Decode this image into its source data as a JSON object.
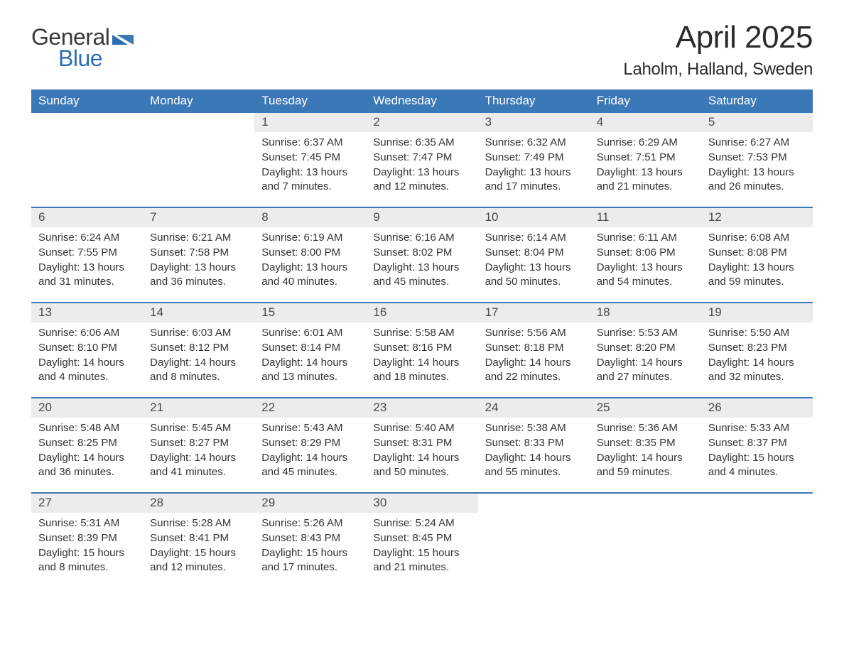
{
  "logo": {
    "top": "General",
    "bottom": "Blue",
    "top_color": "#3a3a3a",
    "bottom_color": "#2d6fb6"
  },
  "title": "April 2025",
  "location": "Laholm, Halland, Sweden",
  "colors": {
    "header_bg": "#3b78b8",
    "header_text": "#ffffff",
    "daynum_bg": "#ececec",
    "border": "#3b78b8",
    "text": "#333333",
    "background": "#ffffff"
  },
  "day_names": [
    "Sunday",
    "Monday",
    "Tuesday",
    "Wednesday",
    "Thursday",
    "Friday",
    "Saturday"
  ],
  "labels": {
    "sunrise": "Sunrise:",
    "sunset": "Sunset:",
    "daylight": "Daylight:"
  },
  "weeks": [
    [
      null,
      null,
      {
        "n": "1",
        "sr": "6:37 AM",
        "ss": "7:45 PM",
        "dl": "13 hours and 7 minutes."
      },
      {
        "n": "2",
        "sr": "6:35 AM",
        "ss": "7:47 PM",
        "dl": "13 hours and 12 minutes."
      },
      {
        "n": "3",
        "sr": "6:32 AM",
        "ss": "7:49 PM",
        "dl": "13 hours and 17 minutes."
      },
      {
        "n": "4",
        "sr": "6:29 AM",
        "ss": "7:51 PM",
        "dl": "13 hours and 21 minutes."
      },
      {
        "n": "5",
        "sr": "6:27 AM",
        "ss": "7:53 PM",
        "dl": "13 hours and 26 minutes."
      }
    ],
    [
      {
        "n": "6",
        "sr": "6:24 AM",
        "ss": "7:55 PM",
        "dl": "13 hours and 31 minutes."
      },
      {
        "n": "7",
        "sr": "6:21 AM",
        "ss": "7:58 PM",
        "dl": "13 hours and 36 minutes."
      },
      {
        "n": "8",
        "sr": "6:19 AM",
        "ss": "8:00 PM",
        "dl": "13 hours and 40 minutes."
      },
      {
        "n": "9",
        "sr": "6:16 AM",
        "ss": "8:02 PM",
        "dl": "13 hours and 45 minutes."
      },
      {
        "n": "10",
        "sr": "6:14 AM",
        "ss": "8:04 PM",
        "dl": "13 hours and 50 minutes."
      },
      {
        "n": "11",
        "sr": "6:11 AM",
        "ss": "8:06 PM",
        "dl": "13 hours and 54 minutes."
      },
      {
        "n": "12",
        "sr": "6:08 AM",
        "ss": "8:08 PM",
        "dl": "13 hours and 59 minutes."
      }
    ],
    [
      {
        "n": "13",
        "sr": "6:06 AM",
        "ss": "8:10 PM",
        "dl": "14 hours and 4 minutes."
      },
      {
        "n": "14",
        "sr": "6:03 AM",
        "ss": "8:12 PM",
        "dl": "14 hours and 8 minutes."
      },
      {
        "n": "15",
        "sr": "6:01 AM",
        "ss": "8:14 PM",
        "dl": "14 hours and 13 minutes."
      },
      {
        "n": "16",
        "sr": "5:58 AM",
        "ss": "8:16 PM",
        "dl": "14 hours and 18 minutes."
      },
      {
        "n": "17",
        "sr": "5:56 AM",
        "ss": "8:18 PM",
        "dl": "14 hours and 22 minutes."
      },
      {
        "n": "18",
        "sr": "5:53 AM",
        "ss": "8:20 PM",
        "dl": "14 hours and 27 minutes."
      },
      {
        "n": "19",
        "sr": "5:50 AM",
        "ss": "8:23 PM",
        "dl": "14 hours and 32 minutes."
      }
    ],
    [
      {
        "n": "20",
        "sr": "5:48 AM",
        "ss": "8:25 PM",
        "dl": "14 hours and 36 minutes."
      },
      {
        "n": "21",
        "sr": "5:45 AM",
        "ss": "8:27 PM",
        "dl": "14 hours and 41 minutes."
      },
      {
        "n": "22",
        "sr": "5:43 AM",
        "ss": "8:29 PM",
        "dl": "14 hours and 45 minutes."
      },
      {
        "n": "23",
        "sr": "5:40 AM",
        "ss": "8:31 PM",
        "dl": "14 hours and 50 minutes."
      },
      {
        "n": "24",
        "sr": "5:38 AM",
        "ss": "8:33 PM",
        "dl": "14 hours and 55 minutes."
      },
      {
        "n": "25",
        "sr": "5:36 AM",
        "ss": "8:35 PM",
        "dl": "14 hours and 59 minutes."
      },
      {
        "n": "26",
        "sr": "5:33 AM",
        "ss": "8:37 PM",
        "dl": "15 hours and 4 minutes."
      }
    ],
    [
      {
        "n": "27",
        "sr": "5:31 AM",
        "ss": "8:39 PM",
        "dl": "15 hours and 8 minutes."
      },
      {
        "n": "28",
        "sr": "5:28 AM",
        "ss": "8:41 PM",
        "dl": "15 hours and 12 minutes."
      },
      {
        "n": "29",
        "sr": "5:26 AM",
        "ss": "8:43 PM",
        "dl": "15 hours and 17 minutes."
      },
      {
        "n": "30",
        "sr": "5:24 AM",
        "ss": "8:45 PM",
        "dl": "15 hours and 21 minutes."
      },
      null,
      null,
      null
    ]
  ]
}
